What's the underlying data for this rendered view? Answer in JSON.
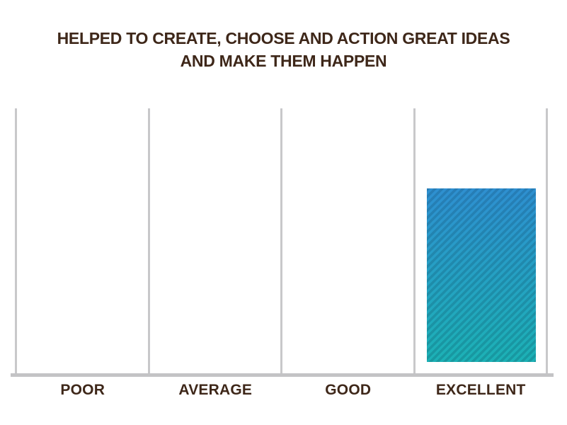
{
  "title": {
    "line1": "HELPED TO CREATE, CHOOSE AND ACTION GREAT IDEAS",
    "line2": "AND MAKE THEM HAPPEN"
  },
  "chart_data": {
    "type": "bar",
    "title": "HELPED TO CREATE, CHOOSE AND ACTION GREAT IDEAS AND MAKE THEM HAPPEN",
    "categories": [
      "POOR",
      "AVERAGE",
      "GOOD",
      "EXCELLENT"
    ],
    "values": [
      0,
      0,
      0,
      68.4
    ],
    "xlabel": "",
    "ylabel": "",
    "ylim": [
      0,
      100
    ],
    "y_axis_visible": false,
    "grid": "vertical-column-separators-only",
    "legend_position": "none",
    "annotations": []
  },
  "colors": {
    "background": "#ffffff",
    "title_text": "#3e2719",
    "axis_label_text": "#3e2719",
    "gridline": "#c8c8ca",
    "baseline": "#c3c3c5",
    "bar_gradient_top": "#2e8fd0",
    "bar_gradient_bottom": "#1cb1b5",
    "bar_stripe_overlay": "rgba(0,30,50,0.16)"
  }
}
